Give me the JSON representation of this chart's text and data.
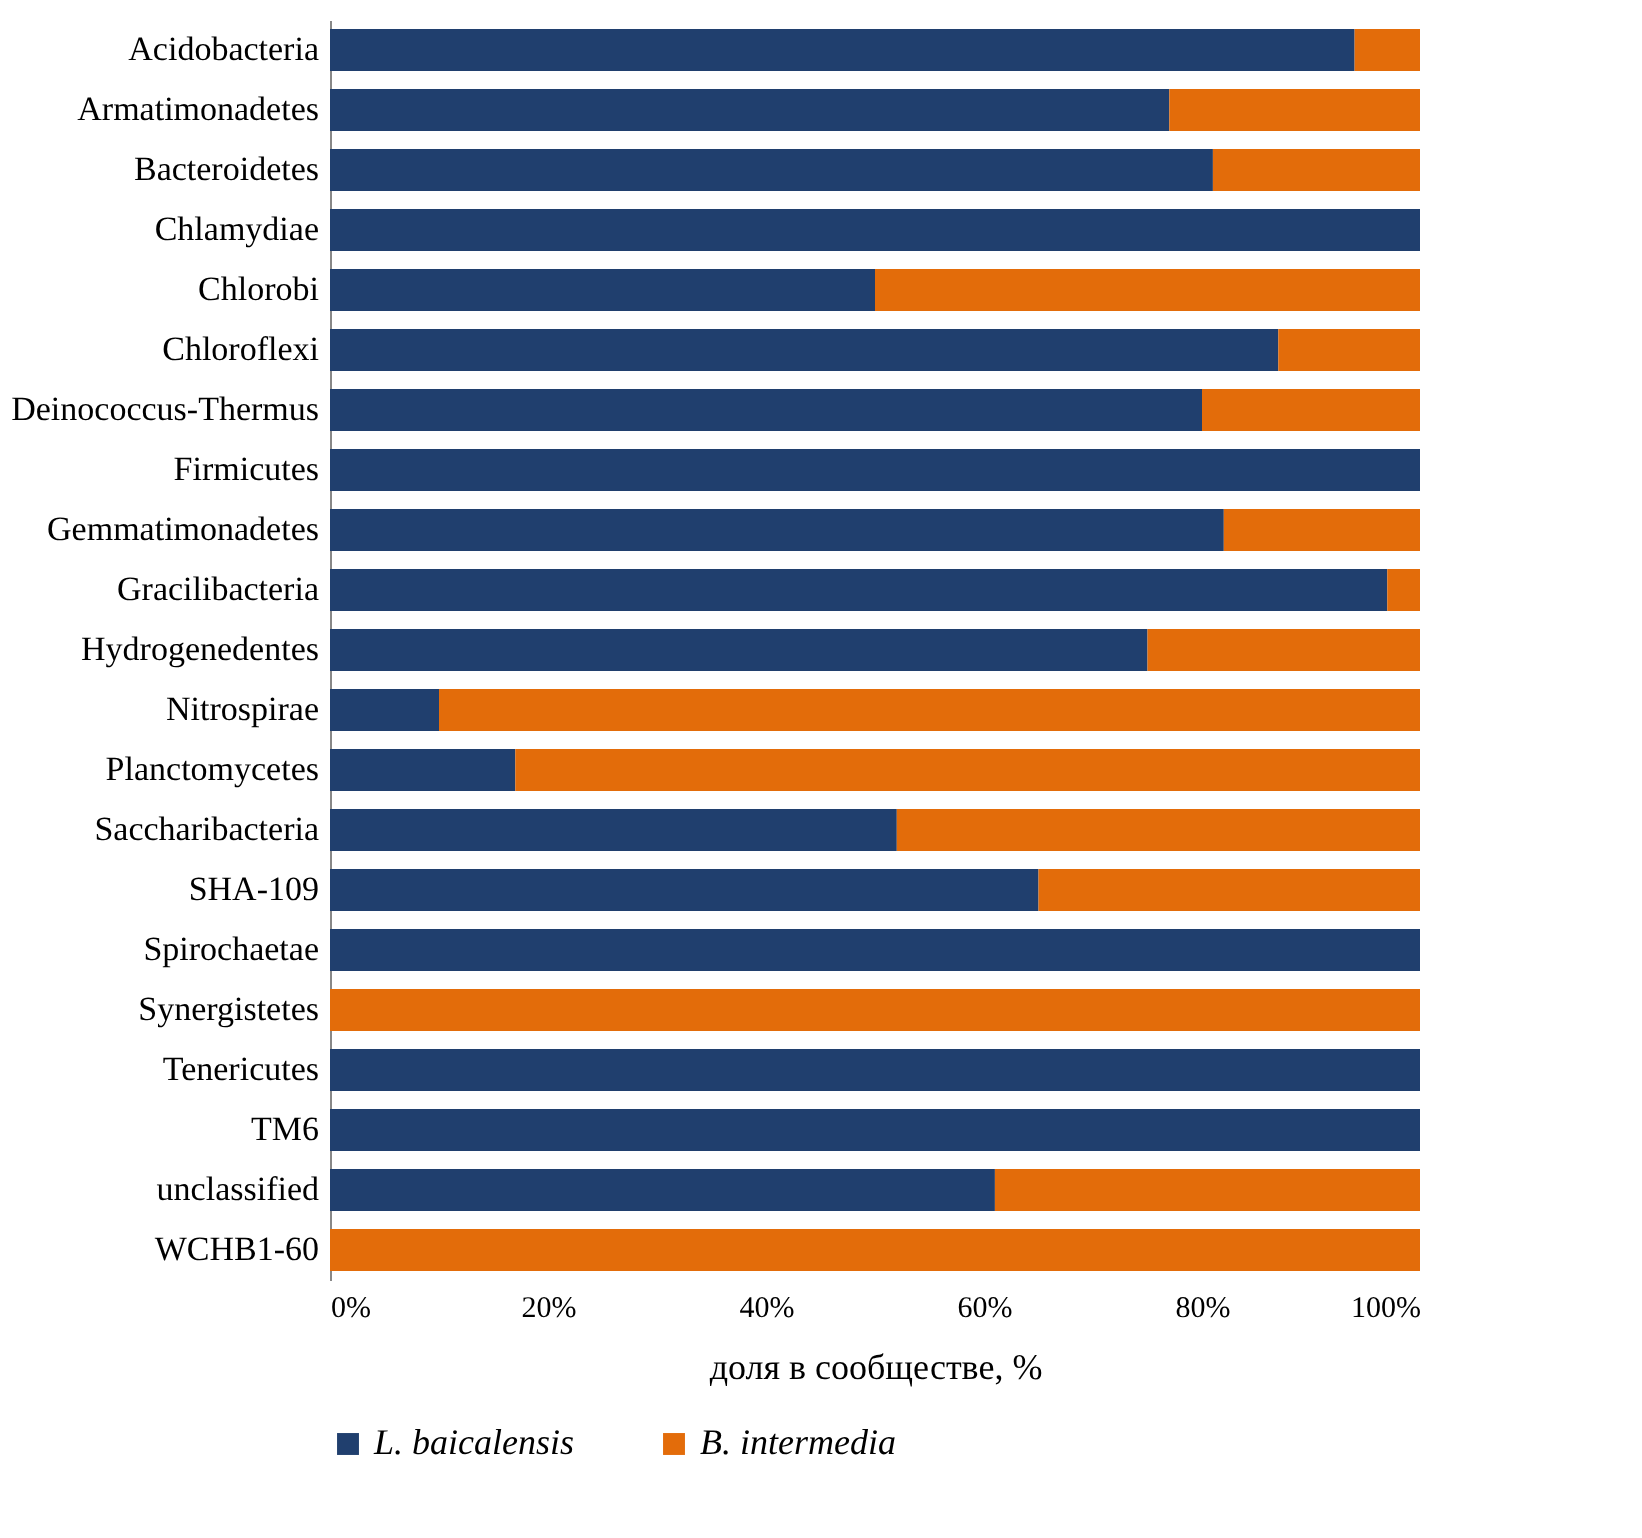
{
  "chart_data": {
    "type": "bar",
    "orientation": "horizontal",
    "stacked": true,
    "categories": [
      "Acidobacteria",
      "Armatimonadetes",
      "Bacteroidetes",
      "Chlamydiae",
      "Chlorobi",
      "Chloroflexi",
      "Deinococcus-Thermus",
      "Firmicutes",
      "Gemmatimonadetes",
      "Gracilibacteria",
      "Hydrogenedentes",
      "Nitrospirae",
      "Planctomycetes",
      "Saccharibacteria",
      "SHA-109",
      "Spirochaetae",
      "Synergistetes",
      "Tenericutes",
      "TM6",
      "unclassified",
      "WCHB1-60"
    ],
    "series": [
      {
        "name": "L. baicalensis",
        "color": "#203f6e",
        "values": [
          94,
          77,
          81,
          100,
          50,
          87,
          80,
          100,
          82,
          97,
          75,
          10,
          17,
          52,
          65,
          100,
          0,
          100,
          100,
          61,
          0
        ]
      },
      {
        "name": "B. intermedia",
        "color": "#e36c0a",
        "values": [
          6,
          23,
          19,
          0,
          50,
          13,
          20,
          0,
          18,
          3,
          25,
          90,
          83,
          48,
          35,
          0,
          100,
          0,
          0,
          39,
          100
        ]
      }
    ],
    "xlabel": "доля в сообществе, %",
    "xlim": [
      0,
      100
    ],
    "xticks": [
      {
        "value": 0,
        "label": "0%"
      },
      {
        "value": 20,
        "label": "20%"
      },
      {
        "value": 40,
        "label": "40%"
      },
      {
        "value": 60,
        "label": "60%"
      },
      {
        "value": 80,
        "label": "80%"
      },
      {
        "value": 100,
        "label": "100%"
      }
    ],
    "grid": false,
    "legend": "bottom"
  }
}
